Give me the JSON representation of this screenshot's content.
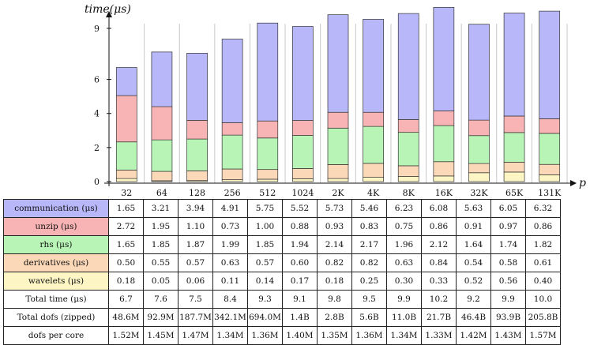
{
  "chart_data": {
    "type": "bar",
    "stacked": true,
    "ylabel": "time(μs)",
    "xlabel": "p",
    "ylim": [
      0,
      10.2
    ],
    "yticks": [
      0,
      2,
      4,
      6,
      9
    ],
    "categories": [
      "32",
      "64",
      "128",
      "256",
      "512",
      "1024",
      "2K",
      "4K",
      "8K",
      "16K",
      "32K",
      "65K",
      "131K"
    ],
    "series": [
      {
        "name": "wavelets (μs)",
        "color": "#fdf6c4",
        "values": [
          0.18,
          0.05,
          0.06,
          0.11,
          0.14,
          0.17,
          0.18,
          0.25,
          0.3,
          0.33,
          0.52,
          0.56,
          0.4
        ]
      },
      {
        "name": "derivatives (μs)",
        "color": "#fbd8b8",
        "values": [
          0.5,
          0.55,
          0.57,
          0.63,
          0.57,
          0.6,
          0.82,
          0.82,
          0.63,
          0.84,
          0.54,
          0.58,
          0.61
        ]
      },
      {
        "name": "rhs (μs)",
        "color": "#b8f4b5",
        "values": [
          1.65,
          1.85,
          1.87,
          1.99,
          1.85,
          1.94,
          2.14,
          2.17,
          1.96,
          2.12,
          1.64,
          1.74,
          1.82
        ]
      },
      {
        "name": "unzip (μs)",
        "color": "#f8b4b4",
        "values": [
          2.72,
          1.95,
          1.1,
          0.73,
          1.0,
          0.88,
          0.93,
          0.83,
          0.75,
          0.86,
          0.91,
          0.97,
          0.86
        ]
      },
      {
        "name": "communication (μs)",
        "color": "#b7b7f9",
        "values": [
          1.65,
          3.21,
          3.94,
          4.91,
          5.75,
          5.52,
          5.73,
          5.46,
          6.23,
          6.08,
          5.63,
          6.05,
          6.32
        ]
      }
    ],
    "grid": "vertical"
  },
  "table": {
    "rows": [
      {
        "label": "communication (μs)",
        "color": "#b7b7f9",
        "cells": [
          "1.65",
          "3.21",
          "3.94",
          "4.91",
          "5.75",
          "5.52",
          "5.73",
          "5.46",
          "6.23",
          "6.08",
          "5.63",
          "6.05",
          "6.32"
        ]
      },
      {
        "label": "unzip (μs)",
        "color": "#f8b4b4",
        "cells": [
          "2.72",
          "1.95",
          "1.10",
          "0.73",
          "1.00",
          "0.88",
          "0.93",
          "0.83",
          "0.75",
          "0.86",
          "0.91",
          "0.97",
          "0.86"
        ]
      },
      {
        "label": "rhs (μs)",
        "color": "#b8f4b5",
        "cells": [
          "1.65",
          "1.85",
          "1.87",
          "1.99",
          "1.85",
          "1.94",
          "2.14",
          "2.17",
          "1.96",
          "2.12",
          "1.64",
          "1.74",
          "1.82"
        ]
      },
      {
        "label": "derivatives (μs)",
        "color": "#fbd8b8",
        "cells": [
          "0.50",
          "0.55",
          "0.57",
          "0.63",
          "0.57",
          "0.60",
          "0.82",
          "0.82",
          "0.63",
          "0.84",
          "0.54",
          "0.58",
          "0.61"
        ]
      },
      {
        "label": "wavelets (μs)",
        "color": "#fdf6c4",
        "cells": [
          "0.18",
          "0.05",
          "0.06",
          "0.11",
          "0.14",
          "0.17",
          "0.18",
          "0.25",
          "0.30",
          "0.33",
          "0.52",
          "0.56",
          "0.40"
        ]
      },
      {
        "label": "Total time (μs)",
        "color": "",
        "cells": [
          "6.7",
          "7.6",
          "7.5",
          "8.4",
          "9.3",
          "9.1",
          "9.8",
          "9.5",
          "9.9",
          "10.2",
          "9.2",
          "9.9",
          "10.0"
        ]
      },
      {
        "label": "Total dofs (zipped)",
        "color": "",
        "cells": [
          "48.6M",
          "92.9M",
          "187.7M",
          "342.1M",
          "694.0M",
          "1.4B",
          "2.8B",
          "5.6B",
          "11.0B",
          "21.7B",
          "46.4B",
          "93.9B",
          "205.8B"
        ]
      },
      {
        "label": "dofs per core",
        "color": "",
        "cells": [
          "1.52M",
          "1.45M",
          "1.47M",
          "1.34M",
          "1.36M",
          "1.40M",
          "1.35M",
          "1.36M",
          "1.34M",
          "1.33M",
          "1.42M",
          "1.43M",
          "1.57M"
        ]
      }
    ]
  }
}
